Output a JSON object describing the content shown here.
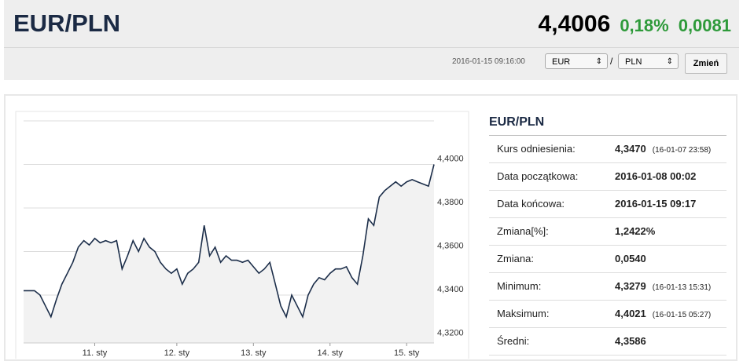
{
  "header": {
    "title": "EUR/PLN",
    "price": "4,4006",
    "change_pct": "0,18%",
    "change": "0,0081",
    "timestamp": "2016-01-15 09:16:00",
    "from": "EUR",
    "separator": "/",
    "to": "PLN",
    "button": "Zmień"
  },
  "chart_data": {
    "type": "line",
    "categories": [
      null,
      null,
      null,
      null,
      null,
      null,
      null,
      null,
      null,
      null,
      null,
      null,
      null,
      "11. sty",
      null,
      null,
      null,
      null,
      null,
      null,
      null,
      null,
      null,
      null,
      null,
      null,
      null,
      null,
      "12. sty",
      null,
      null,
      null,
      null,
      null,
      null,
      null,
      null,
      null,
      null,
      null,
      null,
      null,
      "13. sty",
      null,
      null,
      null,
      null,
      null,
      null,
      null,
      null,
      null,
      null,
      null,
      null,
      null,
      "14. sty",
      null,
      null,
      null,
      null,
      null,
      null,
      null,
      null,
      null,
      null,
      null,
      null,
      null,
      "15. sty",
      null,
      null,
      null,
      null,
      null
    ],
    "series": [
      {
        "name": "EUR/PLN",
        "color": "#1c2e4a",
        "values": [
          4.342,
          4.342,
          4.342,
          4.34,
          4.335,
          4.33,
          4.338,
          4.345,
          4.35,
          4.355,
          4.362,
          4.365,
          4.363,
          4.366,
          4.364,
          4.365,
          4.364,
          4.365,
          4.352,
          4.358,
          4.365,
          4.36,
          4.366,
          4.362,
          4.36,
          4.355,
          4.352,
          4.35,
          4.352,
          4.345,
          4.35,
          4.352,
          4.355,
          4.372,
          4.358,
          4.362,
          4.355,
          4.358,
          4.356,
          4.356,
          4.355,
          4.356,
          4.353,
          4.35,
          4.352,
          4.355,
          4.345,
          4.335,
          4.33,
          4.34,
          4.335,
          4.33,
          4.34,
          4.345,
          4.348,
          4.347,
          4.35,
          4.352,
          4.352,
          4.353,
          4.348,
          4.345,
          4.358,
          4.375,
          4.372,
          4.385,
          4.388,
          4.39,
          4.392,
          4.39,
          4.392,
          4.393,
          4.392,
          4.391,
          4.39,
          4.4
        ]
      }
    ],
    "ylim": [
      4.318,
      4.42
    ],
    "yticks": [
      {
        "value": 4.32,
        "label": "4,3200"
      },
      {
        "value": 4.34,
        "label": "4,3400"
      },
      {
        "value": 4.36,
        "label": "4,3600"
      },
      {
        "value": 4.38,
        "label": "4,3800"
      },
      {
        "value": 4.4,
        "label": "4,4000"
      }
    ],
    "grid": true
  },
  "table": {
    "title": "EUR/PLN",
    "rows": [
      [
        "Kurs odniesienia:",
        "4,3470",
        "(16-01-07 23:58)"
      ],
      [
        "Data początkowa:",
        "2016-01-08 00:02"
      ],
      [
        "Data końcowa:",
        "2016-01-15 09:17"
      ],
      [
        "Zmiana[%]:",
        "1,2422%"
      ],
      [
        "Zmiana:",
        "0,0540"
      ],
      [
        "Minimum:",
        "4,3279",
        "(16-01-13 15:31)"
      ],
      [
        "Maksimum:",
        "4,4021",
        "(16-01-15 05:27)"
      ],
      [
        "Średni:",
        "4,3586"
      ]
    ]
  }
}
